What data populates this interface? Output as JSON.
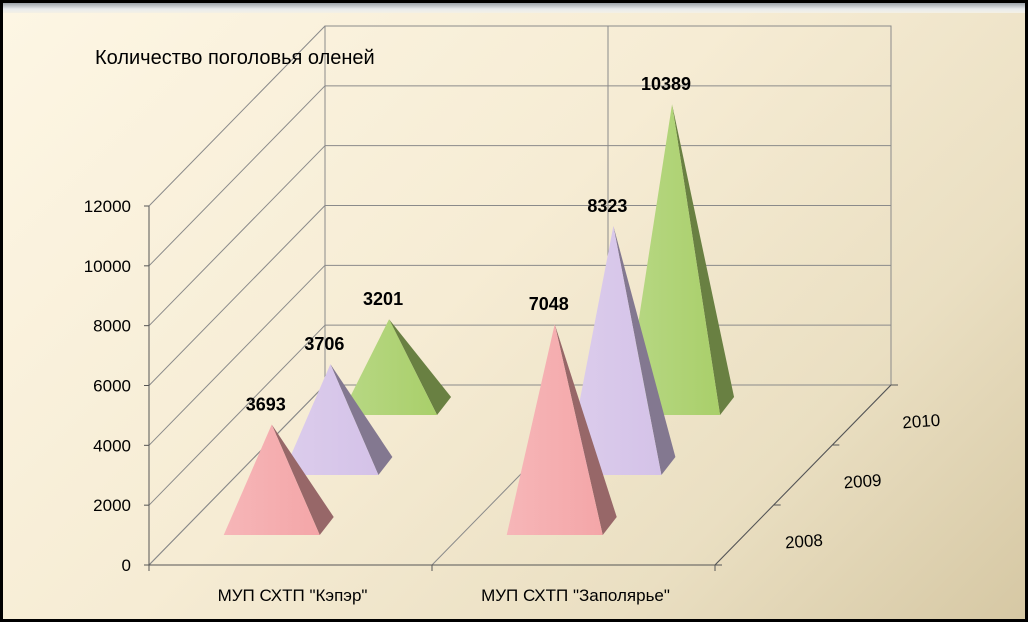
{
  "chart_data": {
    "type": "bar",
    "subtype": "3d-pyramid",
    "title": "Количество поголовья оленей",
    "categories": [
      "МУП СХТП \"Кэпэр\"",
      "МУП СХТП \"Заполярье\""
    ],
    "series": [
      {
        "name": "2008",
        "values": [
          3693,
          7048
        ],
        "color": "#f4a6a8"
      },
      {
        "name": "2009",
        "values": [
          3706,
          8323
        ],
        "color": "#d4c2e8"
      },
      {
        "name": "2010",
        "values": [
          3201,
          10389
        ],
        "color": "#a9cf6a"
      }
    ],
    "ylim": [
      0,
      12000
    ],
    "yticks": [
      "0",
      "2000",
      "4000",
      "6000",
      "8000",
      "10000",
      "12000"
    ],
    "grid": true,
    "data_labels": true
  }
}
